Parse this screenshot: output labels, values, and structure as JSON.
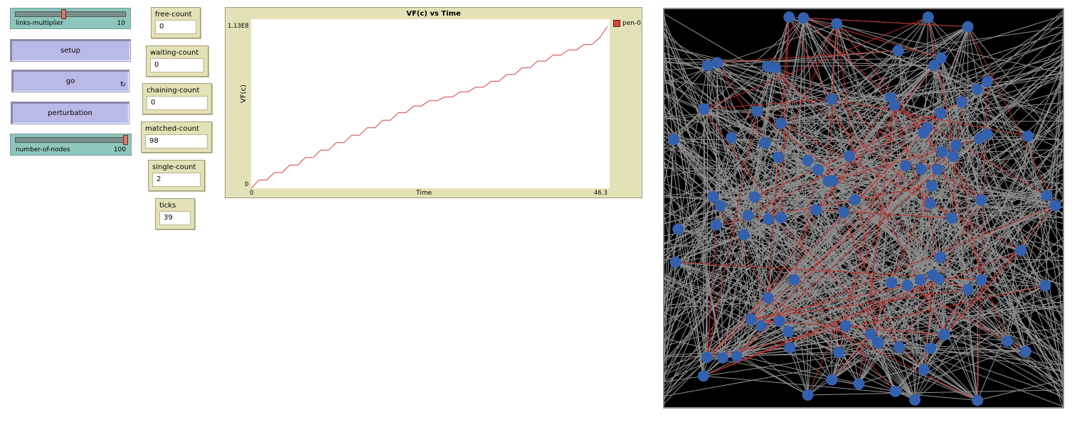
{
  "sliders": {
    "links": {
      "label": "links-multiplier",
      "value": "10",
      "fraction": 0.43
    },
    "nodes": {
      "label": "number-of-nodes",
      "value": "100",
      "fraction": 1.0
    }
  },
  "buttons": {
    "setup": "setup",
    "go": "go",
    "go_icon": "forever-icon",
    "perturbation": "perturbation"
  },
  "monitors": {
    "free": {
      "label": "free-count",
      "value": "0"
    },
    "waiting": {
      "label": "waiting-count",
      "value": "0"
    },
    "chaining": {
      "label": "chaining-count",
      "value": "0"
    },
    "matched": {
      "label": "matched-count",
      "value": "98"
    },
    "single": {
      "label": "single-count",
      "value": "2"
    },
    "ticks": {
      "label": "ticks",
      "value": "39"
    }
  },
  "chart_data": {
    "type": "line",
    "title": "VF(c) vs Time",
    "xlabel": "Time",
    "ylabel": "VF(c)",
    "xlim": [
      0,
      46.3
    ],
    "ylim": [
      0,
      113000000
    ],
    "x_tick_labels": [
      "0",
      "46.3"
    ],
    "y_tick_labels": [
      "0",
      "1.13E8"
    ],
    "legend_position": "top-right",
    "series": [
      {
        "name": "pen-0",
        "color": "#d4413e",
        "x": [
          0,
          1,
          2,
          3,
          4,
          5,
          6,
          7,
          8,
          9,
          10,
          11,
          12,
          13,
          14,
          15,
          16,
          17,
          18,
          19,
          20,
          21,
          22,
          23,
          24,
          25,
          26,
          27,
          28,
          29,
          30,
          31,
          32,
          33,
          34,
          35,
          36,
          37,
          38,
          39,
          40,
          41,
          42,
          43,
          44,
          45,
          46
        ],
        "y": [
          0,
          5.5,
          5.5,
          10.5,
          10.5,
          15.5,
          15.5,
          20.5,
          20.5,
          25.5,
          25.5,
          30.5,
          30.5,
          35.5,
          35.5,
          40.5,
          40.5,
          45.5,
          45.5,
          50.5,
          50.5,
          55.0,
          55.0,
          58.5,
          58.5,
          61.0,
          61.0,
          64.5,
          64.5,
          67.5,
          67.5,
          71.5,
          71.5,
          76.0,
          76.0,
          80.5,
          80.5,
          85.0,
          85.0,
          89.0,
          89.0,
          92.5,
          92.5,
          96.0,
          96.0,
          100.5,
          108.0
        ],
        "y_units": "millions"
      }
    ]
  },
  "world": {
    "background": "#000000",
    "node_color": "#3461ae",
    "link_color": "#8f8f8f",
    "matched_link_color": "#c0302c",
    "node_count": 100
  }
}
